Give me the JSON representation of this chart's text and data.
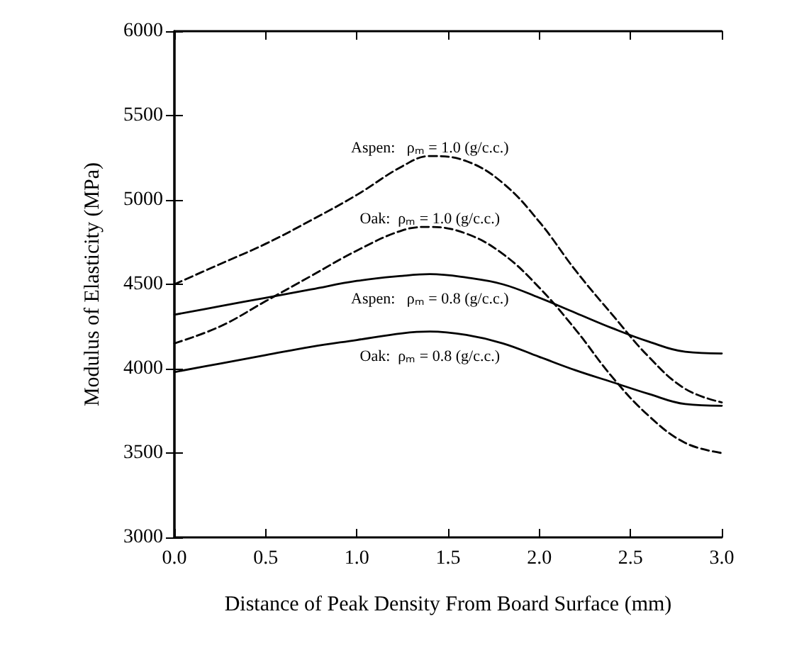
{
  "chart_data": {
    "type": "line",
    "xlabel": "Distance of Peak Density From Board Surface (mm)",
    "ylabel": "Modulus of Elasticity (MPa)",
    "xlim": [
      0,
      3
    ],
    "xticks": [
      {
        "value": 0,
        "label": "0.0"
      },
      {
        "value": 0.5,
        "label": "0.5"
      },
      {
        "value": 1,
        "label": "1.0"
      },
      {
        "value": 1.5,
        "label": "1.5"
      },
      {
        "value": 2,
        "label": "2.0"
      },
      {
        "value": 2.5,
        "label": "2.5"
      },
      {
        "value": 3,
        "label": "3.0"
      }
    ],
    "ylim": [
      3000,
      6000
    ],
    "yticks": [
      3000,
      3500,
      4000,
      4500,
      5000,
      5500,
      6000
    ],
    "grid": false,
    "legend": false,
    "marker": "none",
    "x": [
      0,
      0.25,
      0.5,
      0.75,
      1.0,
      1.25,
      1.4,
      1.6,
      1.8,
      2.0,
      2.2,
      2.4,
      2.6,
      2.8,
      3.0
    ],
    "series": [
      {
        "name": "Aspen:   ρₘ = 1.0 (g/c.c.)",
        "color": "#000000",
        "line_style": "dashed",
        "values": [
          4500,
          4620,
          4740,
          4880,
          5030,
          5200,
          5260,
          5230,
          5100,
          4870,
          4580,
          4320,
          4070,
          3880,
          3800
        ]
      },
      {
        "name": "Oak:  ρₘ = 1.0 (g/c.c.)",
        "color": "#000000",
        "line_style": "dashed",
        "values": [
          4150,
          4250,
          4400,
          4550,
          4700,
          4820,
          4840,
          4800,
          4680,
          4480,
          4230,
          3950,
          3720,
          3560,
          3500
        ]
      },
      {
        "name": "Aspen:   ρₘ = 0.8 (g/c.c.)",
        "color": "#000000",
        "line_style": "solid",
        "values": [
          4320,
          4370,
          4420,
          4470,
          4520,
          4550,
          4560,
          4540,
          4500,
          4420,
          4330,
          4240,
          4160,
          4100,
          4090
        ]
      },
      {
        "name": "Oak:  ρₘ = 0.8 (g/c.c.)",
        "color": "#000000",
        "line_style": "solid",
        "values": [
          3980,
          4030,
          4080,
          4130,
          4170,
          4210,
          4220,
          4200,
          4150,
          4070,
          3990,
          3920,
          3850,
          3790,
          3780
        ]
      }
    ]
  }
}
